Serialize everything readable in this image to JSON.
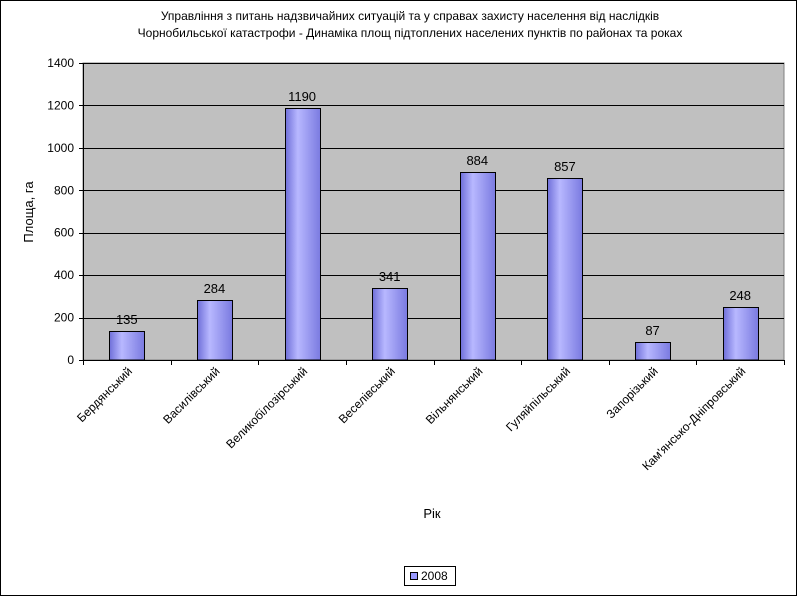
{
  "chart_data": {
    "type": "bar",
    "title_lines": [
      "Управління з питань надзвичайних ситуацій та у справах захисту населення від наслідків",
      "Чорнобильської катастрофи - Динаміка площ підтоплених населених пунктів по районах та роках"
    ],
    "xlabel": "Рік",
    "ylabel": "Площа, га",
    "ylim": [
      0,
      1400
    ],
    "yticks": [
      0,
      200,
      400,
      600,
      800,
      1000,
      1200,
      1400
    ],
    "grid": true,
    "legend_position": "bottom",
    "categories": [
      "Бердянський",
      "Василівський",
      "Великобілозірський",
      "Веселівський",
      "Вільнянський",
      "Гуляйпільський",
      "Запорізький",
      "Кам'янсько-Дніпровський"
    ],
    "series": [
      {
        "name": "2008",
        "color": "#9999ff",
        "values": [
          135,
          284,
          1190,
          341,
          884,
          857,
          87,
          248
        ]
      }
    ],
    "plot_background": "#c0c0c0"
  }
}
